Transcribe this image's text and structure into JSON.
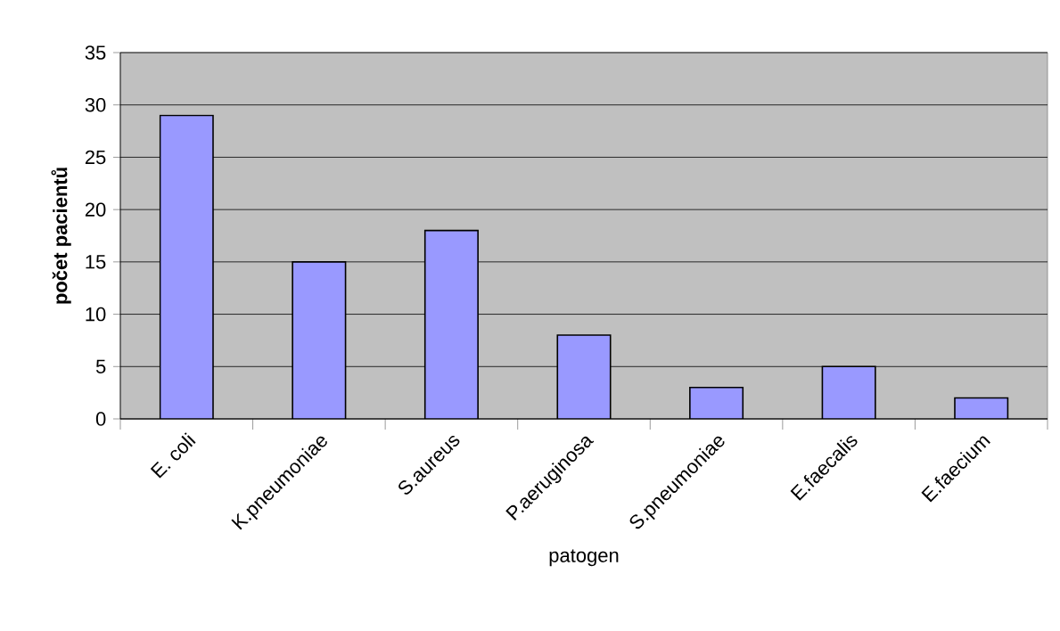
{
  "chart_data": {
    "type": "bar",
    "xlabel": "patogen",
    "ylabel": "**počet pacientů**",
    "categories": [
      "E. coli",
      "K.pneumoniae",
      "S.aureus",
      "P.aeruginosa",
      "S.pneumoniae",
      "E.faecalis",
      "E.faecium"
    ],
    "values": [
      29,
      15,
      18,
      8,
      3,
      5,
      2
    ],
    "color": "#9999ff",
    "ylim": [
      0,
      35
    ],
    "yticks": [
      0,
      5,
      10,
      15,
      20,
      25,
      30,
      35
    ],
    "grid": "y"
  }
}
